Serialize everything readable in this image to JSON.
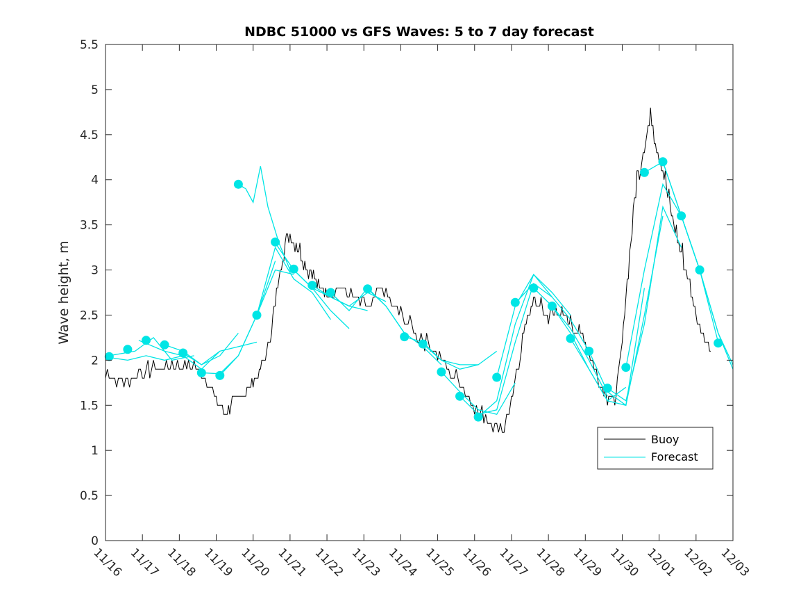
{
  "chart_data": {
    "type": "line",
    "title": "NDBC 51000 vs GFS Waves: 5 to 7 day forecast",
    "xlabel": "",
    "ylabel": "Wave height, m",
    "xlim": [
      0,
      17
    ],
    "ylim": [
      0,
      5.5
    ],
    "yticks": [
      0,
      0.5,
      1,
      1.5,
      2,
      2.5,
      3,
      3.5,
      4,
      4.5,
      5,
      5.5
    ],
    "ytick_labels": [
      "0",
      "0.5",
      "1",
      "1.5",
      "2",
      "2.5",
      "3",
      "3.5",
      "4",
      "4.5",
      "5",
      "5.5"
    ],
    "xtick_labels": [
      "11/16",
      "11/17",
      "11/18",
      "11/19",
      "11/20",
      "11/21",
      "11/22",
      "11/23",
      "11/24",
      "11/25",
      "11/26",
      "11/27",
      "11/28",
      "11/29",
      "11/30",
      "12/01",
      "12/02",
      "12/03"
    ],
    "legend": {
      "placement": "lower-right",
      "entries": [
        "Buoy",
        "Forecast"
      ]
    },
    "colors": {
      "buoy": "#000000",
      "forecast": "#00e5e5",
      "axis": "#262626"
    },
    "buoy": {
      "name": "Buoy",
      "x": [
        0,
        0.3,
        0.6,
        0.9,
        1.2,
        1.5,
        1.8,
        2.1,
        2.4,
        2.7,
        3.0,
        3.2,
        3.4,
        3.6,
        3.8,
        4.0,
        4.2,
        4.4,
        4.6,
        4.8,
        5.0,
        5.2,
        5.4,
        5.6,
        5.8,
        6.0,
        6.3,
        6.6,
        6.9,
        7.2,
        7.5,
        7.8,
        8.1,
        8.4,
        8.7,
        9.0,
        9.3,
        9.6,
        9.9,
        10.2,
        10.5,
        10.8,
        11.0,
        11.2,
        11.4,
        11.6,
        11.8,
        12.0,
        12.2,
        12.4,
        12.6,
        12.8,
        13.0,
        13.2,
        13.4,
        13.6,
        13.8,
        14.0,
        14.2,
        14.4,
        14.6,
        14.8,
        15.0,
        15.2,
        15.4,
        15.6,
        15.8,
        16.0,
        16.2,
        16.4
      ],
      "y": [
        1.85,
        1.8,
        1.75,
        1.85,
        1.9,
        1.9,
        1.95,
        1.95,
        1.95,
        1.8,
        1.55,
        1.45,
        1.5,
        1.6,
        1.65,
        1.75,
        1.9,
        2.15,
        2.6,
        3.2,
        3.4,
        3.3,
        3.1,
        2.95,
        2.8,
        2.75,
        2.8,
        2.75,
        2.65,
        2.6,
        2.8,
        2.6,
        2.5,
        2.3,
        2.2,
        2.05,
        1.9,
        1.75,
        1.55,
        1.4,
        1.3,
        1.25,
        1.5,
        2.0,
        2.45,
        2.65,
        2.6,
        2.5,
        2.55,
        2.5,
        2.4,
        2.35,
        2.2,
        2.0,
        1.75,
        1.6,
        1.55,
        2.2,
        3.2,
        4.0,
        4.4,
        4.7,
        4.3,
        3.9,
        3.5,
        3.2,
        2.9,
        2.5,
        2.3,
        2.1
      ]
    },
    "forecast_lines": [
      {
        "x": [
          0.1,
          0.6,
          1.1,
          1.6,
          2.1
        ],
        "y": [
          2.03,
          2.0,
          2.05,
          2.0,
          2.05
        ]
      },
      {
        "x": [
          0.1,
          0.8,
          1.3,
          1.8,
          2.4
        ],
        "y": [
          2.05,
          2.1,
          2.25,
          2.0,
          2.05
        ]
      },
      {
        "x": [
          0.9,
          1.6,
          2.1,
          2.6,
          3.1
        ],
        "y": [
          2.22,
          2.1,
          2.05,
          1.9,
          2.1
        ]
      },
      {
        "x": [
          1.6,
          2.1,
          2.6,
          3.1,
          3.6
        ],
        "y": [
          2.17,
          2.1,
          1.95,
          2.05,
          2.3
        ]
      },
      {
        "x": [
          2.1,
          2.6,
          3.1,
          3.6,
          4.1
        ],
        "y": [
          2.08,
          1.95,
          2.1,
          2.15,
          2.2
        ]
      },
      {
        "x": [
          2.6,
          3.1,
          3.6,
          4.1,
          4.6
        ],
        "y": [
          1.86,
          1.85,
          2.05,
          2.5,
          3.1
        ]
      },
      {
        "x": [
          3.1,
          3.6,
          4.1,
          4.6,
          5.1
        ],
        "y": [
          1.83,
          2.05,
          2.5,
          3.0,
          2.95
        ]
      },
      {
        "x": [
          3.6,
          3.8,
          4.0,
          4.2,
          4.4,
          4.7,
          5.0
        ],
        "y": [
          3.95,
          3.9,
          3.75,
          4.15,
          3.7,
          3.3,
          3.0
        ]
      },
      {
        "x": [
          4.1,
          4.6,
          5.1,
          5.6,
          6.1
        ],
        "y": [
          2.5,
          3.25,
          2.9,
          2.75,
          2.45
        ]
      },
      {
        "x": [
          4.6,
          5.1,
          5.6,
          6.1,
          6.6
        ],
        "y": [
          3.3,
          3.0,
          2.8,
          2.55,
          2.35
        ]
      },
      {
        "x": [
          5.1,
          5.6,
          6.1,
          6.6,
          7.1
        ],
        "y": [
          3.0,
          2.8,
          2.7,
          2.6,
          2.55
        ]
      },
      {
        "x": [
          5.6,
          6.1,
          6.6,
          7.1,
          7.6
        ],
        "y": [
          2.83,
          2.7,
          2.6,
          2.75,
          2.65
        ]
      },
      {
        "x": [
          6.1,
          6.6,
          7.1,
          7.6,
          8.1
        ],
        "y": [
          2.75,
          2.55,
          2.8,
          2.6,
          2.3
        ]
      },
      {
        "x": [
          7.1,
          7.6,
          8.1,
          8.6,
          9.1
        ],
        "y": [
          2.79,
          2.6,
          2.3,
          2.15,
          1.95
        ]
      },
      {
        "x": [
          8.1,
          8.6,
          9.1,
          9.6,
          10.1
        ],
        "y": [
          2.26,
          2.2,
          2.0,
          1.9,
          1.95
        ]
      },
      {
        "x": [
          8.6,
          9.1,
          9.6,
          10.1,
          10.6
        ],
        "y": [
          2.18,
          2.0,
          1.95,
          1.95,
          2.1
        ]
      },
      {
        "x": [
          9.1,
          9.6,
          10.1,
          10.6,
          11.1
        ],
        "y": [
          1.87,
          1.65,
          1.45,
          1.4,
          1.75
        ]
      },
      {
        "x": [
          9.6,
          10.1,
          10.6,
          11.1,
          11.6
        ],
        "y": [
          1.6,
          1.4,
          1.45,
          2.2,
          2.85
        ]
      },
      {
        "x": [
          10.1,
          10.6,
          11.1,
          11.6,
          12.1
        ],
        "y": [
          1.37,
          1.55,
          2.4,
          2.95,
          2.7
        ]
      },
      {
        "x": [
          10.6,
          11.1,
          11.6,
          12.1,
          12.6
        ],
        "y": [
          1.81,
          2.6,
          2.95,
          2.75,
          2.5
        ]
      },
      {
        "x": [
          11.1,
          11.6,
          12.1,
          12.6,
          13.1
        ],
        "y": [
          2.63,
          2.85,
          2.7,
          2.45,
          2.1
        ]
      },
      {
        "x": [
          11.6,
          12.1,
          12.6,
          13.1,
          13.6
        ],
        "y": [
          2.8,
          2.6,
          2.35,
          2.0,
          1.6
        ]
      },
      {
        "x": [
          12.1,
          12.6,
          13.1,
          13.6,
          14.1
        ],
        "y": [
          2.6,
          2.3,
          1.9,
          1.55,
          1.7
        ]
      },
      {
        "x": [
          12.6,
          13.1,
          13.6,
          14.1,
          14.6
        ],
        "y": [
          2.24,
          1.9,
          1.55,
          1.5,
          2.8
        ]
      },
      {
        "x": [
          13.1,
          13.6,
          14.1,
          14.6,
          15.1
        ],
        "y": [
          2.1,
          1.65,
          1.5,
          2.5,
          3.6
        ]
      },
      {
        "x": [
          13.6,
          14.1,
          14.6,
          15.1,
          15.6
        ],
        "y": [
          1.69,
          1.55,
          2.4,
          3.7,
          3.25
        ]
      },
      {
        "x": [
          14.1,
          14.6,
          15.1,
          15.6,
          16.1
        ],
        "y": [
          1.92,
          3.0,
          3.95,
          3.6,
          3.0
        ]
      },
      {
        "x": [
          14.6,
          15.1,
          15.6,
          16.1,
          16.6
        ],
        "y": [
          4.08,
          4.2,
          3.6,
          3.0,
          2.2
        ]
      },
      {
        "x": [
          15.1,
          15.6,
          16.1,
          16.6,
          17.0
        ],
        "y": [
          4.2,
          3.6,
          3.0,
          2.3,
          1.95
        ]
      },
      {
        "x": [
          15.6,
          16.1,
          16.6,
          17.0
        ],
        "y": [
          3.6,
          3.0,
          2.3,
          1.9
        ]
      }
    ],
    "forecast_markers": {
      "x": [
        0.1,
        0.6,
        1.1,
        1.6,
        2.1,
        2.6,
        3.1,
        3.6,
        4.1,
        4.6,
        5.1,
        5.6,
        6.1,
        7.1,
        8.1,
        8.6,
        9.1,
        9.6,
        10.1,
        10.6,
        11.1,
        11.6,
        12.1,
        12.6,
        13.1,
        13.6,
        14.1,
        14.6,
        15.1,
        15.6,
        16.1,
        16.6
      ],
      "y": [
        2.04,
        2.12,
        2.22,
        2.17,
        2.08,
        1.86,
        1.83,
        3.95,
        2.5,
        3.31,
        3.01,
        2.83,
        2.75,
        2.79,
        2.26,
        2.18,
        1.87,
        1.6,
        1.37,
        1.81,
        2.64,
        2.8,
        2.6,
        2.24,
        2.1,
        1.69,
        1.92,
        4.08,
        4.2,
        3.6,
        3.0,
        2.19
      ]
    }
  }
}
